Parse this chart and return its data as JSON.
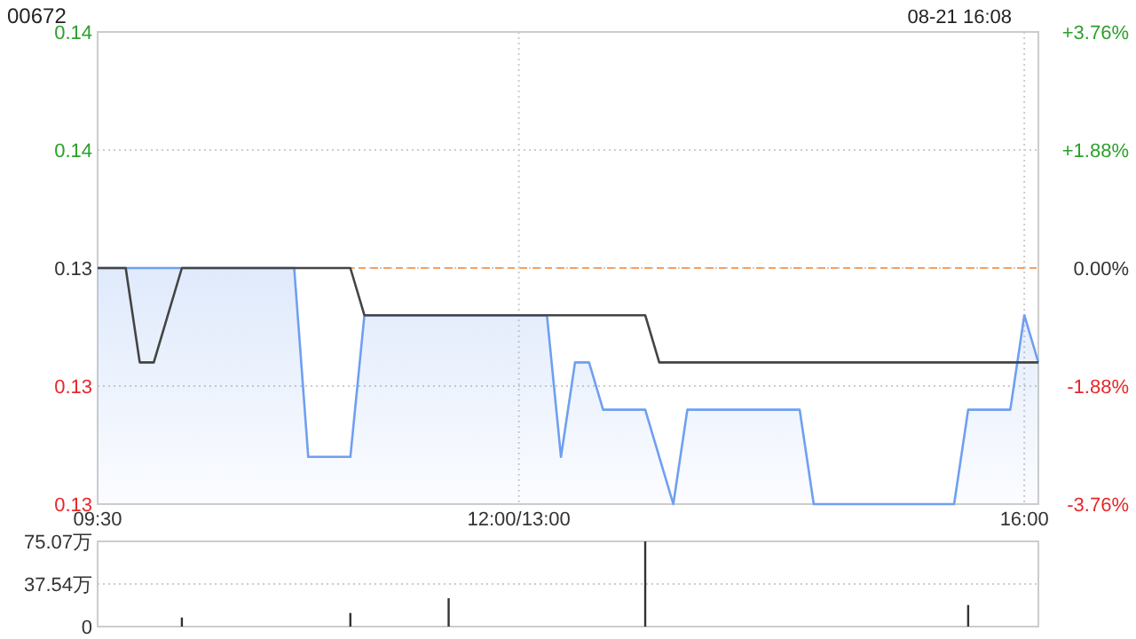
{
  "chart_data": [
    {
      "type": "line",
      "title": "00672",
      "annotations": [
        "08-21 16:08"
      ],
      "categories": [
        "09:30",
        null,
        null,
        null,
        null,
        null,
        null,
        null,
        null,
        null,
        null,
        null,
        null,
        null,
        null,
        null,
        null,
        null,
        null,
        null,
        null,
        null,
        null,
        null,
        null,
        null,
        null,
        null,
        null,
        null,
        "12:00/13:00",
        null,
        null,
        null,
        null,
        null,
        null,
        null,
        null,
        null,
        null,
        null,
        null,
        null,
        null,
        null,
        null,
        null,
        null,
        null,
        null,
        null,
        null,
        null,
        null,
        null,
        null,
        null,
        null,
        null,
        null,
        null,
        null,
        null,
        null,
        null,
        "16:00",
        null
      ],
      "series": [
        {
          "type": "area",
          "color": "#6f9ff0",
          "values": [
            0.133,
            0.133,
            0.133,
            0.133,
            0.133,
            0.133,
            0.133,
            0.133,
            0.133,
            0.133,
            0.133,
            0.133,
            0.133,
            0.133,
            0.133,
            0.129,
            0.129,
            0.129,
            0.129,
            0.132,
            0.132,
            0.132,
            0.132,
            0.132,
            0.132,
            0.132,
            0.132,
            0.132,
            0.132,
            0.132,
            0.132,
            0.132,
            0.132,
            0.129,
            0.131,
            0.131,
            0.13,
            0.13,
            0.13,
            0.13,
            0.129,
            0.128,
            0.13,
            0.13,
            0.13,
            0.13,
            0.13,
            0.13,
            0.13,
            0.13,
            0.13,
            0.128,
            0.128,
            0.128,
            0.128,
            0.128,
            0.128,
            0.128,
            0.128,
            0.128,
            0.128,
            0.128,
            0.13,
            0.13,
            0.13,
            0.13,
            0.132,
            0.131
          ]
        },
        {
          "color": "#444444",
          "values": [
            0.133,
            0.133,
            0.133,
            0.131,
            0.131,
            0.132,
            0.133,
            0.133,
            0.133,
            0.133,
            0.133,
            0.133,
            0.133,
            0.133,
            0.133,
            0.133,
            0.133,
            0.133,
            0.133,
            0.132,
            0.132,
            0.132,
            0.132,
            0.132,
            0.132,
            0.132,
            0.132,
            0.132,
            0.132,
            0.132,
            0.132,
            0.132,
            0.132,
            0.132,
            0.132,
            0.132,
            0.132,
            0.132,
            0.132,
            0.132,
            0.131,
            0.131,
            0.131,
            0.131,
            0.131,
            0.131,
            0.131,
            0.131,
            0.131,
            0.131,
            0.131,
            0.131,
            0.131,
            0.131,
            0.131,
            0.131,
            0.131,
            0.131,
            0.131,
            0.131,
            0.131,
            0.131,
            0.131,
            0.131,
            0.131,
            0.131,
            0.131,
            0.131
          ]
        }
      ],
      "ylim": [
        0.128,
        0.138
      ],
      "yticks": [
        {
          "value": 0.128,
          "label": "0.13"
        },
        {
          "value": 0.1305,
          "label": "0.13"
        },
        {
          "value": 0.133,
          "label": "0.13"
        },
        {
          "value": 0.1355,
          "label": "0.14"
        },
        {
          "value": 0.138,
          "label": "0.14"
        }
      ],
      "y2lim": [
        -3.76,
        3.76
      ],
      "y2ticks": [
        {
          "value": -3.76,
          "label": "-3.76%"
        },
        {
          "value": -1.88,
          "label": "-1.88%"
        },
        {
          "value": 0,
          "label": "0.00%"
        },
        {
          "value": 1.88,
          "label": "+1.88%"
        },
        {
          "value": 3.76,
          "label": "+3.76%"
        }
      ],
      "ref_lines": [
        {
          "axis": "y",
          "value": 0.133,
          "color": "#f5a060",
          "line_style": "dashed"
        }
      ],
      "grid": true
    },
    {
      "type": "bar",
      "color": "#333333",
      "categories": [
        null,
        null,
        null,
        null,
        null,
        null,
        null,
        null,
        null,
        null,
        null,
        null,
        null,
        null,
        null,
        null,
        null,
        null,
        null,
        null,
        null,
        null,
        null,
        null,
        null,
        null,
        null,
        null,
        null,
        null,
        null,
        null,
        null,
        null,
        null,
        null,
        null,
        null,
        null,
        null,
        null,
        null,
        null,
        null,
        null,
        null,
        null,
        null,
        null,
        null,
        null,
        null,
        null,
        null,
        null,
        null,
        null,
        null,
        null,
        null,
        null,
        null,
        null,
        null,
        null,
        null,
        null,
        null
      ],
      "values": [
        null,
        null,
        null,
        null,
        null,
        null,
        8,
        null,
        null,
        null,
        null,
        null,
        null,
        null,
        null,
        null,
        null,
        null,
        12,
        null,
        null,
        null,
        null,
        null,
        null,
        25,
        null,
        null,
        null,
        null,
        null,
        null,
        null,
        null,
        null,
        null,
        null,
        null,
        null,
        75,
        null,
        null,
        null,
        null,
        null,
        null,
        null,
        null,
        null,
        null,
        null,
        null,
        null,
        null,
        null,
        null,
        null,
        null,
        null,
        null,
        null,
        null,
        19,
        null,
        null,
        null,
        null,
        null
      ],
      "ylim": [
        0,
        75.07
      ],
      "yticks": [
        {
          "value": 0,
          "label": "0"
        },
        {
          "value": 37.54,
          "label": "37.54万"
        },
        {
          "value": 75.07,
          "label": "75.07万"
        }
      ],
      "tick_labels": "y",
      "grid": "y"
    }
  ]
}
